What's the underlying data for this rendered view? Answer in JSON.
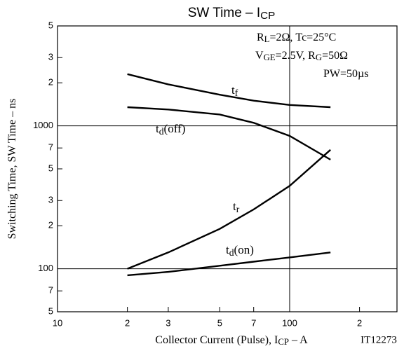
{
  "chart_data": {
    "type": "line",
    "title": [
      "SW Time  –  I",
      "CP"
    ],
    "x_label": [
      "Collector Current (Pulse), I",
      "CP",
      "  –  A"
    ],
    "y_label": [
      "Switching Time, SW Time  –  ns"
    ],
    "code": "IT12273",
    "annotations": [
      [
        "R",
        "L",
        "=2Ω, Tc=25°C"
      ],
      [
        "V",
        "GE",
        "=2.5V, R",
        "G",
        "=50Ω"
      ],
      [
        "PW=50µs"
      ]
    ],
    "log_x": true,
    "log_y": true,
    "grid": "major",
    "color": "#000000",
    "xlim": [
      10,
      290
    ],
    "ylim": [
      50,
      5000
    ],
    "xticks": [
      10,
      {
        "value": 20,
        "label": "2"
      },
      {
        "value": 30,
        "label": "3"
      },
      {
        "value": 50,
        "label": "5"
      },
      {
        "value": 70,
        "label": "7"
      },
      100,
      {
        "value": 200,
        "label": "2"
      }
    ],
    "yticks": [
      {
        "value": 50,
        "label": "5"
      },
      {
        "value": 70,
        "label": "7"
      },
      100,
      {
        "value": 200,
        "label": "2"
      },
      {
        "value": 300,
        "label": "3"
      },
      {
        "value": 500,
        "label": "5"
      },
      {
        "value": 700,
        "label": "7"
      },
      1000,
      {
        "value": 2000,
        "label": "2"
      },
      {
        "value": 3000,
        "label": "3"
      },
      {
        "value": 5000,
        "label": "5"
      }
    ],
    "x": [
      20,
      30,
      50,
      70,
      100,
      150
    ],
    "series": [
      {
        "name": [
          "t",
          "f"
        ],
        "values": [
          2300,
          1950,
          1650,
          1500,
          1400,
          1350
        ]
      },
      {
        "name": [
          "t",
          "d",
          "(off)"
        ],
        "values": [
          1350,
          1300,
          1200,
          1050,
          850,
          580
        ]
      },
      {
        "name": [
          "t",
          "r"
        ],
        "values": [
          100,
          130,
          190,
          260,
          380,
          680
        ]
      },
      {
        "name": [
          "t",
          "d",
          "(on)"
        ],
        "values": [
          90,
          95,
          105,
          112,
          120,
          130
        ]
      }
    ]
  }
}
